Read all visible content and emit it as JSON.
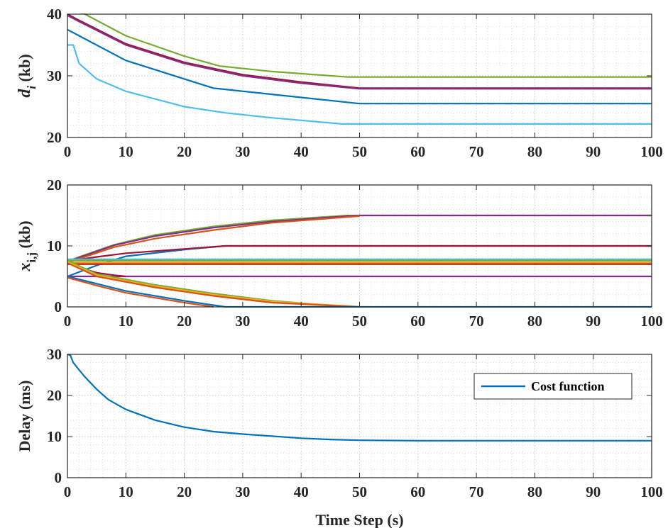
{
  "chart_data": [
    {
      "type": "line",
      "ylabel_main": "d",
      "ylabel_sub": "i",
      "ylabel_unit": "(kb)",
      "xlim": [
        0,
        100
      ],
      "ylim": [
        20,
        40
      ],
      "xticks": [
        0,
        10,
        20,
        30,
        40,
        50,
        60,
        70,
        80,
        90,
        100
      ],
      "yticks": [
        20,
        30,
        40
      ],
      "grid": true,
      "minor_grid": true,
      "series": [
        {
          "color": "#77AC30",
          "x": [
            0,
            3,
            10,
            20,
            26,
            35,
            48,
            100
          ],
          "y": [
            41,
            40,
            36.5,
            33.2,
            31.6,
            30.7,
            29.8,
            29.8
          ]
        },
        {
          "color": "#A2142F",
          "x": [
            0,
            2,
            10,
            20,
            30,
            40,
            50,
            100
          ],
          "y": [
            40,
            39,
            35.2,
            32.2,
            30.2,
            29.0,
            28.0,
            28.0
          ]
        },
        {
          "color": "#7E2F8E",
          "x": [
            0,
            2,
            10,
            20,
            30,
            40,
            50,
            100
          ],
          "y": [
            39.8,
            38.8,
            35.0,
            32.0,
            30.0,
            28.8,
            27.9,
            27.9
          ]
        },
        {
          "color": "#0072BD",
          "x": [
            0,
            2,
            10,
            20,
            25,
            35,
            50,
            100
          ],
          "y": [
            37.5,
            36.5,
            32.5,
            29.5,
            28.0,
            27.0,
            25.5,
            25.5
          ]
        },
        {
          "color": "#4DBEEE",
          "x": [
            0,
            1,
            2,
            5,
            10,
            20,
            27,
            35,
            47,
            100
          ],
          "y": [
            35,
            35,
            32,
            29.5,
            27.5,
            25.0,
            24.0,
            23.2,
            22.2,
            22.2
          ]
        }
      ]
    },
    {
      "type": "line",
      "ylabel_main": "x",
      "ylabel_sub": "i,j",
      "ylabel_unit": "(kb)",
      "xlim": [
        0,
        100
      ],
      "ylim": [
        0,
        20
      ],
      "xticks": [
        0,
        10,
        20,
        30,
        40,
        50,
        60,
        70,
        80,
        90,
        100
      ],
      "yticks": [
        0,
        10,
        20
      ],
      "grid": true,
      "minor_grid": true,
      "series": [
        {
          "color": "#77AC30",
          "x": [
            0,
            2,
            8,
            15,
            25,
            35,
            48,
            50,
            100
          ],
          "y": [
            7.5,
            8.2,
            10.2,
            11.8,
            13.2,
            14.2,
            15.0,
            15.0,
            15.0
          ]
        },
        {
          "color": "#7E2F8E",
          "x": [
            0,
            2,
            8,
            15,
            25,
            35,
            48,
            50,
            100
          ],
          "y": [
            7.4,
            8.1,
            10.1,
            11.6,
            13.0,
            14.0,
            14.9,
            15.0,
            15.0
          ]
        },
        {
          "color": "#D95319",
          "x": [
            0,
            2,
            8,
            15,
            25,
            35,
            50
          ],
          "y": [
            7.3,
            7.9,
            9.8,
            11.2,
            12.6,
            13.8,
            14.9
          ]
        },
        {
          "color": "#0072BD",
          "x": [
            0,
            5,
            10,
            20,
            27,
            100
          ],
          "y": [
            5.0,
            6.8,
            8.3,
            9.4,
            10.0,
            10.0
          ]
        },
        {
          "color": "#A2142F",
          "x": [
            0,
            5,
            10,
            20,
            27,
            100
          ],
          "y": [
            7.5,
            8.2,
            8.8,
            9.5,
            10.0,
            10.0
          ]
        },
        {
          "color": "#4DBEEE",
          "x": [
            0,
            100
          ],
          "y": [
            7.8,
            7.8
          ]
        },
        {
          "color": "#77AC30",
          "x": [
            0,
            100
          ],
          "y": [
            7.6,
            7.6
          ]
        },
        {
          "color": "#EDB120",
          "x": [
            0,
            100
          ],
          "y": [
            7.3,
            7.3
          ]
        },
        {
          "color": "#A2142F",
          "x": [
            0,
            100
          ],
          "y": [
            7.0,
            7.0
          ]
        },
        {
          "color": "#D95319",
          "x": [
            0,
            100
          ],
          "y": [
            7.1,
            7.1
          ]
        },
        {
          "color": "#7E2F8E",
          "x": [
            0,
            5,
            100
          ],
          "y": [
            5.0,
            5.0,
            5.0
          ]
        },
        {
          "color": "#A2142F",
          "x": [
            0,
            2,
            5,
            8,
            10
          ],
          "y": [
            7.5,
            6.5,
            5.6,
            5.2,
            5.0
          ]
        },
        {
          "color": "#77AC30",
          "x": [
            0,
            5,
            15,
            25,
            35,
            48
          ],
          "y": [
            7.6,
            5.4,
            3.6,
            2.2,
            1.0,
            0.0
          ]
        },
        {
          "color": "#EDB120",
          "x": [
            0,
            5,
            15,
            25,
            35,
            50
          ],
          "y": [
            7.4,
            5.2,
            3.4,
            2.0,
            0.9,
            0.0
          ]
        },
        {
          "color": "#D95319",
          "x": [
            0,
            5,
            15,
            25,
            35,
            50
          ],
          "y": [
            7.2,
            5.0,
            3.2,
            1.8,
            0.7,
            0.0
          ]
        },
        {
          "color": "#0072BD",
          "x": [
            0,
            5,
            10,
            20,
            27,
            100
          ],
          "y": [
            5.0,
            3.8,
            2.6,
            1.0,
            0.0,
            0.0
          ]
        },
        {
          "color": "#D95319",
          "x": [
            0,
            5,
            10,
            20,
            25
          ],
          "y": [
            4.8,
            3.5,
            2.3,
            0.7,
            0.0
          ]
        }
      ]
    },
    {
      "type": "line",
      "ylabel_main": "Delay (ms)",
      "xlabel": "Time Step (s)",
      "xlim": [
        0,
        100
      ],
      "ylim": [
        0,
        30
      ],
      "xticks": [
        0,
        10,
        20,
        30,
        40,
        50,
        60,
        70,
        80,
        90,
        100
      ],
      "yticks": [
        0,
        10,
        20,
        30
      ],
      "grid": true,
      "minor_grid": true,
      "legend": "top-right",
      "series": [
        {
          "name": "Cost function",
          "color": "#0072BD",
          "x": [
            0,
            0.5,
            1,
            2,
            3,
            5,
            7,
            10,
            15,
            20,
            25,
            30,
            35,
            40,
            45,
            50,
            60,
            100
          ],
          "y": [
            30,
            29.8,
            28,
            26.2,
            24.5,
            21.5,
            19.0,
            16.6,
            14.0,
            12.3,
            11.2,
            10.6,
            10.1,
            9.6,
            9.3,
            9.1,
            9.0,
            9.0
          ]
        }
      ]
    }
  ]
}
